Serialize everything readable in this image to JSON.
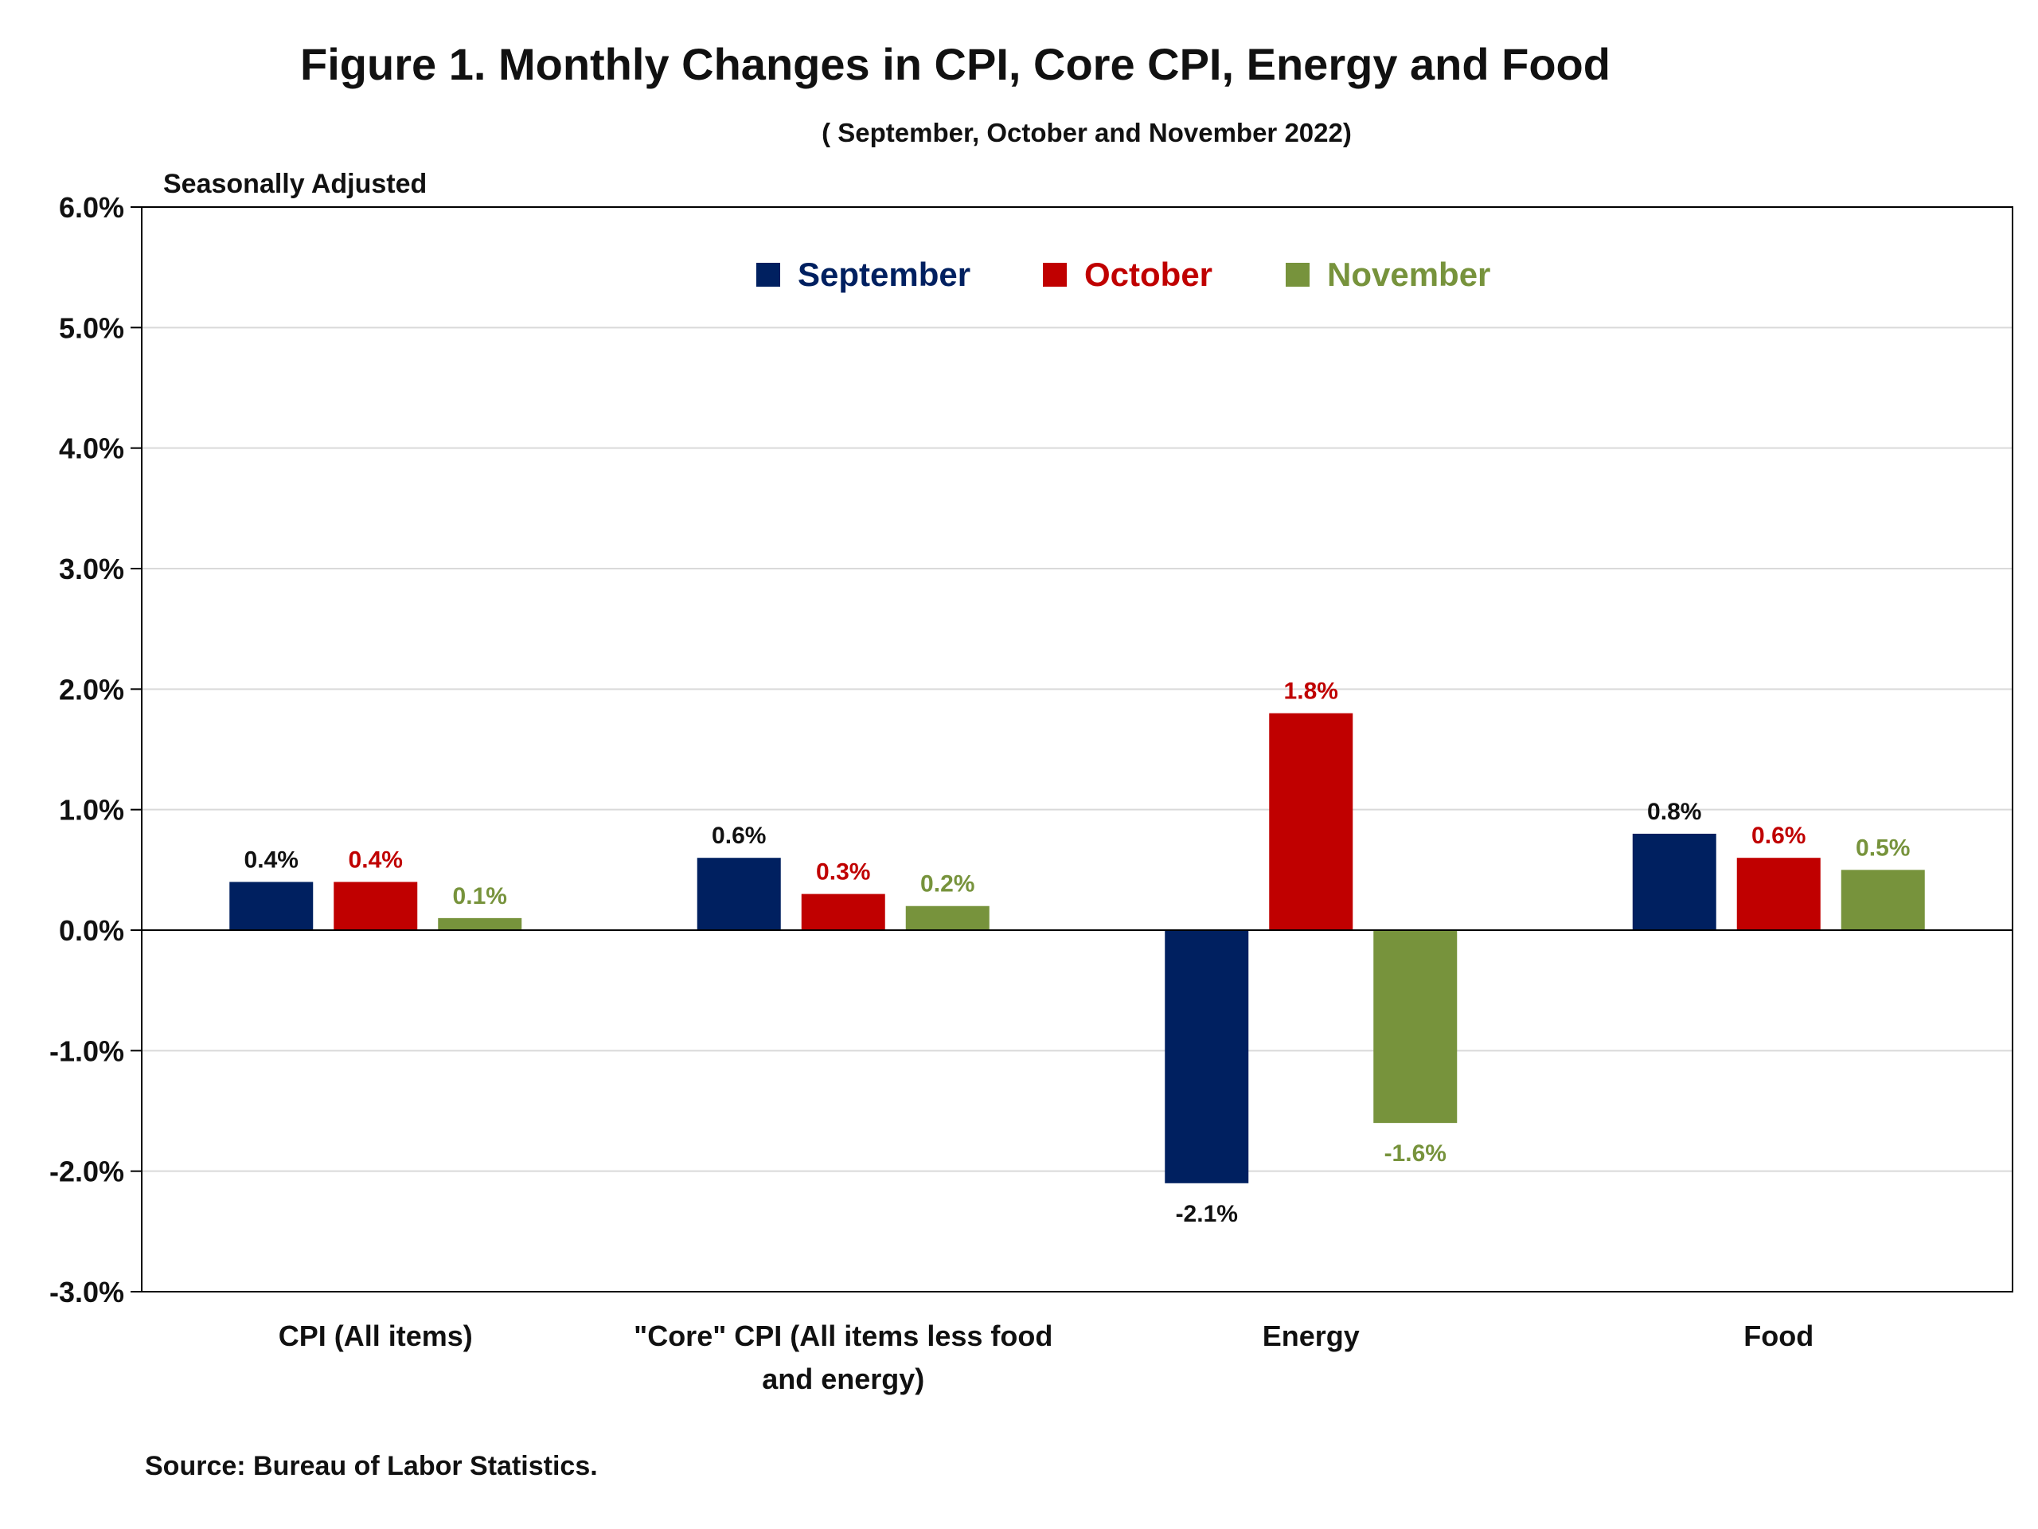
{
  "chart_data": {
    "type": "bar",
    "title": "Figure 1. Monthly Changes in CPI, Core CPI, Energy and Food",
    "subtitle": "( September, October and November 2022)",
    "y_note": "Seasonally Adjusted",
    "source": "Source: Bureau of Labor Statistics.",
    "categories": [
      [
        "CPI (All items)"
      ],
      [
        "\"Core\" CPI (All items less food",
        "and energy)"
      ],
      [
        "Energy"
      ],
      [
        "Food"
      ]
    ],
    "series": [
      {
        "name": "September",
        "color": "#002060",
        "label_color": "#111111",
        "values": [
          0.4,
          0.6,
          -2.1,
          0.8
        ],
        "labels": [
          "0.4%",
          "0.6%",
          "-2.1%",
          "0.8%"
        ]
      },
      {
        "name": "October",
        "color": "#C00000",
        "label_color": "#C00000",
        "values": [
          0.4,
          0.3,
          1.8,
          0.6
        ],
        "labels": [
          "0.4%",
          "0.3%",
          "1.8%",
          "0.6%"
        ]
      },
      {
        "name": "November",
        "color": "#77933C",
        "label_color": "#77933C",
        "values": [
          0.1,
          0.2,
          -1.6,
          0.5
        ],
        "labels": [
          "0.1%",
          "0.2%",
          "-1.6%",
          "0.5%"
        ]
      }
    ],
    "ylim": [
      -3.0,
      6.0
    ],
    "yticks": [
      -3.0,
      -2.0,
      -1.0,
      0.0,
      1.0,
      2.0,
      3.0,
      4.0,
      5.0,
      6.0
    ],
    "ytick_labels": [
      "-3.0%",
      "-2.0%",
      "-1.0%",
      "0.0%",
      "1.0%",
      "2.0%",
      "3.0%",
      "4.0%",
      "5.0%",
      "6.0%"
    ],
    "grid": true,
    "legend_position": "top-center"
  }
}
